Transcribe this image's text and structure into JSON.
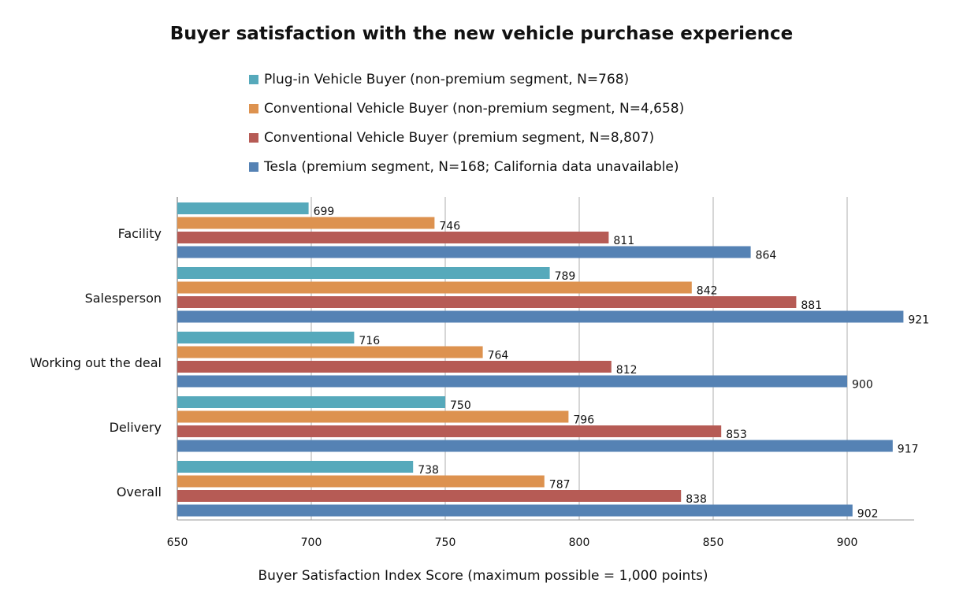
{
  "chart_data": {
    "type": "bar",
    "orientation": "horizontal",
    "title": "Buyer satisfaction with the new vehicle purchase experience",
    "xlabel": "Buyer Satisfaction Index Score (maximum possible = 1,000 points)",
    "ylabel": "",
    "xlim": [
      650,
      925
    ],
    "xticks": [
      650,
      700,
      750,
      800,
      850,
      900
    ],
    "grid": true,
    "legend_position": "top",
    "categories": [
      "Facility",
      "Salesperson",
      "Working out the deal",
      "Delivery",
      "Overall"
    ],
    "series": [
      {
        "name": "Plug-in Vehicle Buyer (non-premium segment, N=768)",
        "color": "#56a9bb",
        "values": [
          699,
          789,
          716,
          750,
          738
        ]
      },
      {
        "name": "Conventional Vehicle Buyer (non-premium segment, N=4,658)",
        "color": "#dd924f",
        "values": [
          746,
          842,
          764,
          796,
          787
        ]
      },
      {
        "name": "Conventional Vehicle Buyer (premium segment, N=8,807)",
        "color": "#b65b55",
        "values": [
          811,
          881,
          812,
          853,
          838
        ]
      },
      {
        "name": "Tesla (premium segment, N=168; California data unavailable)",
        "color": "#5582b4",
        "values": [
          864,
          921,
          900,
          917,
          902
        ]
      }
    ]
  }
}
